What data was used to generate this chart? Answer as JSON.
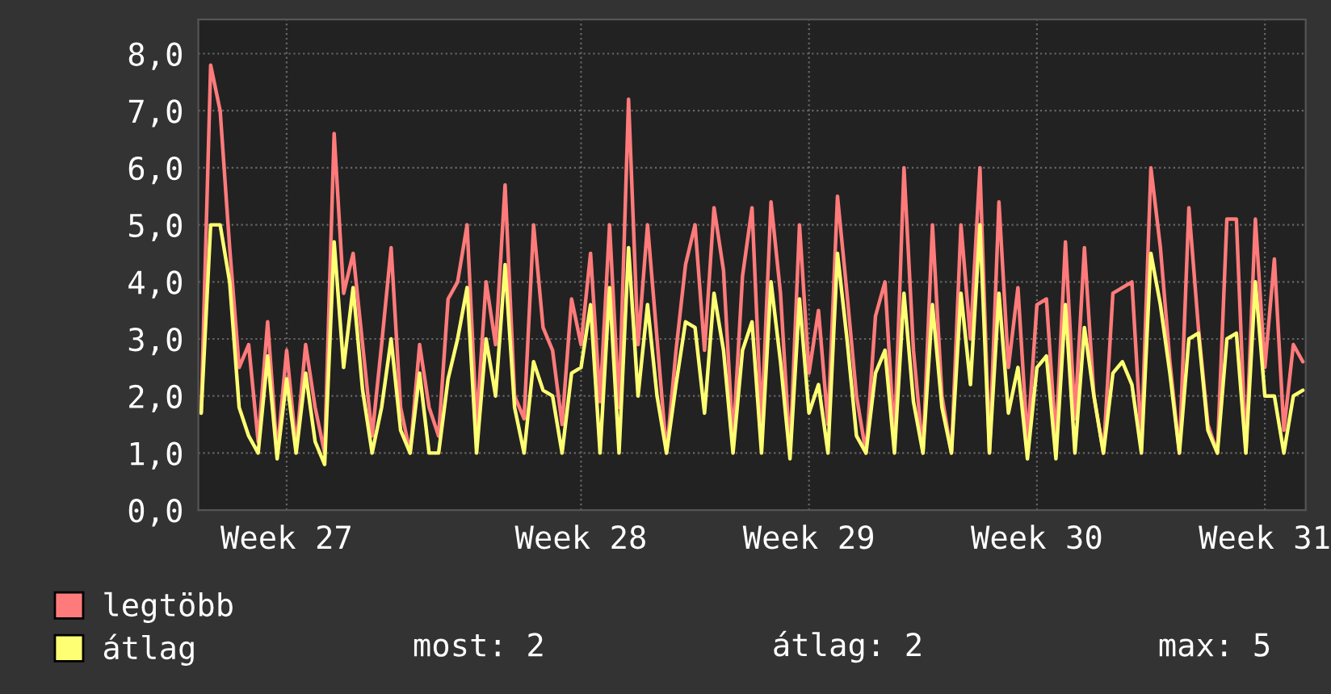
{
  "chart_data": {
    "type": "line",
    "series": [
      {
        "name": "legtöbb",
        "color": "#ff7b7b",
        "values": [
          1.7,
          7.8,
          7.0,
          4.6,
          2.5,
          2.9,
          1.2,
          3.3,
          1.0,
          2.8,
          1.1,
          2.9,
          1.8,
          1.0,
          6.6,
          3.8,
          4.5,
          2.9,
          1.3,
          2.9,
          4.6,
          1.8,
          1.0,
          2.9,
          1.8,
          1.3,
          3.7,
          4.0,
          5.0,
          1.5,
          4.0,
          2.9,
          5.7,
          2.0,
          1.6,
          5.0,
          3.2,
          2.8,
          1.5,
          3.7,
          2.9,
          4.5,
          1.9,
          5.0,
          1.8,
          7.2,
          2.9,
          5.0,
          3.0,
          1.0,
          2.8,
          4.3,
          5.0,
          2.8,
          5.3,
          4.2,
          1.2,
          4.1,
          5.3,
          1.5,
          5.4,
          3.8,
          1.0,
          5.0,
          2.4,
          3.5,
          1.5,
          5.5,
          3.8,
          2.0,
          1.0,
          3.4,
          4.0,
          1.2,
          6.0,
          2.8,
          1.0,
          5.0,
          2.0,
          1.0,
          5.0,
          3.0,
          6.0,
          1.0,
          5.4,
          2.5,
          3.9,
          1.2,
          3.6,
          3.7,
          1.2,
          4.7,
          1.6,
          4.6,
          2.0,
          1.0,
          3.8,
          3.9,
          4.0,
          1.2,
          6.0,
          4.6,
          2.6,
          1.0,
          5.3,
          3.2,
          1.5,
          1.0,
          5.1,
          5.1,
          1.0,
          5.1,
          2.5,
          4.4,
          1.4,
          2.9,
          2.6
        ]
      },
      {
        "name": "átlag",
        "color": "#ffff73",
        "values": [
          1.7,
          5.0,
          5.0,
          4.0,
          1.8,
          1.3,
          1.0,
          2.7,
          0.9,
          2.3,
          1.0,
          2.4,
          1.2,
          0.8,
          4.7,
          2.5,
          3.9,
          2.1,
          1.0,
          1.8,
          3.0,
          1.4,
          1.0,
          2.4,
          1.0,
          1.0,
          2.3,
          3.0,
          3.9,
          1.0,
          3.0,
          2.0,
          4.3,
          1.8,
          1.0,
          2.6,
          2.1,
          2.0,
          1.0,
          2.4,
          2.5,
          3.6,
          1.0,
          3.9,
          1.0,
          4.6,
          2.0,
          3.6,
          2.0,
          1.0,
          2.2,
          3.3,
          3.2,
          1.7,
          3.8,
          2.8,
          1.0,
          2.8,
          3.3,
          1.0,
          4.0,
          2.6,
          0.9,
          3.7,
          1.7,
          2.2,
          1.0,
          4.5,
          3.0,
          1.3,
          1.0,
          2.4,
          2.8,
          1.0,
          3.8,
          1.9,
          1.0,
          3.6,
          1.8,
          1.0,
          3.8,
          2.2,
          5.0,
          1.0,
          3.8,
          1.7,
          2.5,
          0.9,
          2.5,
          2.7,
          0.9,
          3.6,
          1.0,
          3.2,
          2.0,
          1.0,
          2.4,
          2.6,
          2.2,
          1.0,
          4.5,
          3.6,
          2.4,
          1.0,
          3.0,
          3.1,
          1.4,
          1.0,
          3.0,
          3.1,
          1.0,
          4.0,
          2.0,
          2.0,
          1.0,
          2.0,
          2.1
        ]
      }
    ],
    "categories": [
      null,
      null,
      null,
      null,
      null,
      null,
      null,
      null,
      null,
      "Week 27",
      null,
      null,
      null,
      null,
      null,
      null,
      null,
      null,
      null,
      null,
      null,
      null,
      null,
      null,
      null,
      null,
      null,
      null,
      null,
      null,
      null,
      null,
      null,
      null,
      null,
      null,
      null,
      null,
      null,
      null,
      "Week 28",
      null,
      null,
      null,
      null,
      null,
      null,
      null,
      null,
      null,
      null,
      null,
      null,
      null,
      null,
      null,
      null,
      null,
      null,
      null,
      null,
      null,
      null,
      null,
      "Week 29",
      null,
      null,
      null,
      null,
      null,
      null,
      null,
      null,
      null,
      null,
      null,
      null,
      null,
      null,
      null,
      null,
      null,
      null,
      null,
      null,
      null,
      null,
      null,
      "Week 30",
      null,
      null,
      null,
      null,
      null,
      null,
      null,
      null,
      null,
      null,
      null,
      null,
      null,
      null,
      null,
      null,
      null,
      null,
      null,
      null,
      null,
      null,
      null,
      "Week 31",
      null,
      null,
      null,
      null
    ],
    "ylim": [
      0,
      8.6
    ],
    "yticks": [
      {
        "value": 0,
        "label": "0,0"
      },
      {
        "value": 1,
        "label": "1,0"
      },
      {
        "value": 2,
        "label": "2,0"
      },
      {
        "value": 3,
        "label": "3,0"
      },
      {
        "value": 4,
        "label": "4,0"
      },
      {
        "value": 5,
        "label": "5,0"
      },
      {
        "value": 6,
        "label": "6,0"
      },
      {
        "value": 7,
        "label": "7,0"
      },
      {
        "value": 8,
        "label": "8,0"
      }
    ],
    "grid": true,
    "legend": "bottom",
    "annotations": [
      "most: 2",
      "átlag: 2",
      "max: 5"
    ]
  }
}
